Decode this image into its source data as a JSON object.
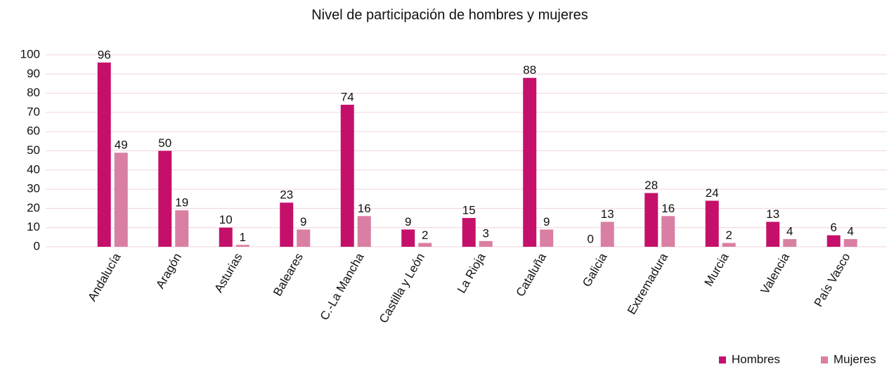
{
  "chart_data": {
    "type": "bar",
    "title": "Nivel de participación de hombres y mujeres",
    "categories": [
      "Andalucía",
      "Aragón",
      "Asturias",
      "Baleares",
      "C.-La Mancha",
      "Castilla y León",
      "La Rioja",
      "Cataluña",
      "Galicia",
      "Extremadura",
      "Murcia",
      "Valencia",
      "País Vasco"
    ],
    "series": [
      {
        "name": "Hombres",
        "color": "#c5106b",
        "values": [
          96,
          50,
          10,
          23,
          74,
          9,
          15,
          88,
          0,
          28,
          24,
          13,
          6
        ]
      },
      {
        "name": "Mujeres",
        "color": "#d97fa3",
        "values": [
          49,
          19,
          1,
          9,
          16,
          2,
          3,
          9,
          13,
          16,
          2,
          4,
          4
        ]
      }
    ],
    "ylim": [
      0,
      100
    ],
    "yticks": [
      0,
      10,
      20,
      30,
      40,
      50,
      60,
      70,
      80,
      90,
      100
    ],
    "grid": true,
    "legend": "bottom-right"
  }
}
